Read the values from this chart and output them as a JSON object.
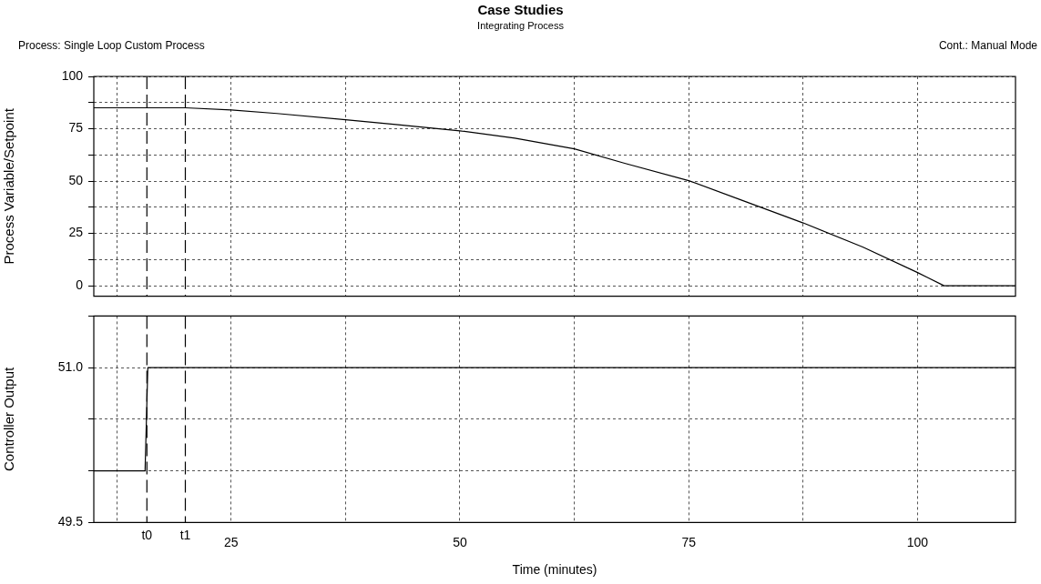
{
  "chart_data": [
    {
      "type": "line",
      "title": "Case Studies",
      "subtitle": "Integrating Process",
      "ylabel": "Process Variable/Setpoint",
      "annotations": [
        "Process: Single Loop Custom Process",
        "Cont.: Manual Mode"
      ],
      "tick_labels": "y",
      "grid": true,
      "marker": "none",
      "line_style": "solid",
      "series": [
        {
          "color": "#000000",
          "x": [
            10,
            20,
            25,
            30,
            37.5,
            43,
            50,
            56,
            62.5,
            68,
            75,
            81,
            87.5,
            94,
            100,
            102.9,
            110.7
          ],
          "values": [
            85,
            85,
            84,
            82.3,
            79.3,
            77,
            74,
            70.5,
            65.4,
            58.5,
            50.2,
            40.5,
            30,
            18.5,
            6.3,
            0,
            0
          ]
        }
      ],
      "xlim": [
        10,
        110.7
      ],
      "xticks": [
        {
          "value": 12.5,
          "label": null
        },
        25,
        {
          "value": 37.5,
          "label": null
        },
        50,
        {
          "value": 62.5,
          "label": null
        },
        75,
        {
          "value": 87.5,
          "label": null
        },
        100
      ],
      "ylim": [
        -5,
        100
      ],
      "yticks": [
        0,
        {
          "value": 12.5,
          "label": null
        },
        25,
        {
          "value": 37.5,
          "label": null
        },
        50,
        {
          "value": 62.5,
          "label": null
        },
        75,
        {
          "value": 87.5,
          "label": null
        },
        100
      ],
      "ref_lines": [
        {
          "axis": "x",
          "value": 15.8,
          "color": "#000000",
          "line_style": "dashed"
        },
        {
          "axis": "x",
          "value": 20,
          "color": "#000000",
          "line_style": "dashed"
        }
      ]
    },
    {
      "type": "line",
      "ylabel": "Controller Output",
      "xlabel": "Time (minutes)",
      "grid": true,
      "marker": "none",
      "line_style": "solid",
      "series": [
        {
          "color": "#000000",
          "x": [
            10,
            15.6,
            15.9,
            110.7
          ],
          "values": [
            50,
            50,
            51,
            51
          ]
        }
      ],
      "xlim": [
        10,
        110.7
      ],
      "xticks": [
        {
          "value": 12.5,
          "label": null
        },
        25,
        {
          "value": 37.5,
          "label": null
        },
        50,
        {
          "value": 62.5,
          "label": null
        },
        75,
        {
          "value": 87.5,
          "label": null
        },
        100
      ],
      "ylim": [
        49.5,
        51.5
      ],
      "yticks": [
        {
          "value": 49.5,
          "label": "49.5"
        },
        {
          "value": 50,
          "label": null
        },
        {
          "value": 50.5,
          "label": null
        },
        {
          "value": 51,
          "label": "51.0"
        },
        {
          "value": 51.5,
          "label": null
        }
      ],
      "ref_lines": [
        {
          "axis": "x",
          "value": 15.8,
          "label": "t0",
          "color": "#000000",
          "line_style": "dashed"
        },
        {
          "axis": "x",
          "value": 20,
          "label": "t1",
          "color": "#000000",
          "line_style": "dashed"
        }
      ]
    }
  ]
}
